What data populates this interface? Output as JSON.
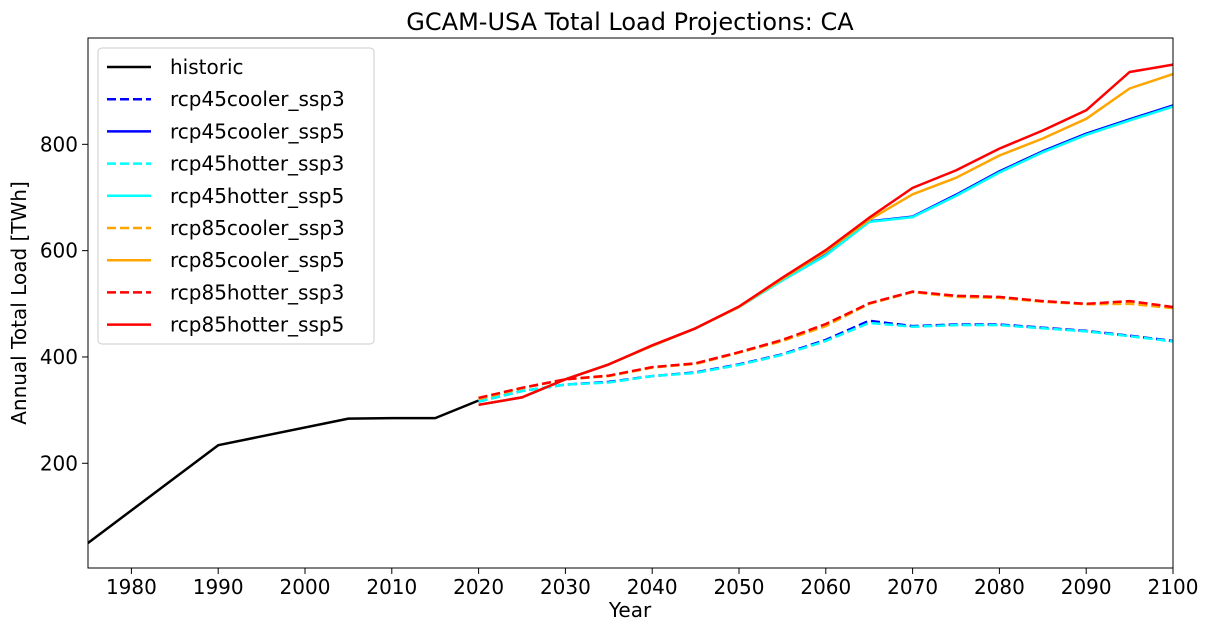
{
  "chart_data": {
    "type": "line",
    "title": "GCAM-USA Total Load Projections: CA",
    "xlabel": "Year",
    "ylabel": "Annual Total Load [TWh]",
    "xlim": [
      1975,
      2100
    ],
    "ylim": [
      3,
      1000
    ],
    "xticks": [
      1980,
      1990,
      2000,
      2010,
      2020,
      2030,
      2040,
      2050,
      2060,
      2070,
      2080,
      2090,
      2100
    ],
    "yticks": [
      200,
      400,
      600,
      800
    ],
    "grid": false,
    "legend_position": "top-left",
    "series": [
      {
        "name": "historic",
        "color": "#000000",
        "dash": "solid",
        "x": [
          1975,
          1990,
          2005,
          2010,
          2015,
          2020
        ],
        "y": [
          50,
          234,
          284,
          285,
          285,
          318
        ]
      },
      {
        "name": "rcp45cooler_ssp3",
        "color": "#0000ff",
        "dash": "dashed",
        "x": [
          2020,
          2025,
          2030,
          2035,
          2040,
          2045,
          2050,
          2055,
          2060,
          2065,
          2070,
          2075,
          2080,
          2085,
          2090,
          2095,
          2100
        ],
        "y": [
          316,
          336,
          348,
          353,
          364,
          371,
          386,
          405,
          432,
          468,
          458,
          461,
          461,
          455,
          449,
          440,
          430
        ]
      },
      {
        "name": "rcp45cooler_ssp5",
        "color": "#0000ff",
        "dash": "solid",
        "x": [
          2020,
          2025,
          2030,
          2035,
          2040,
          2045,
          2050,
          2055,
          2060,
          2065,
          2070,
          2075,
          2080,
          2085,
          2090,
          2095,
          2100
        ],
        "y": [
          310,
          324,
          358,
          386,
          421,
          454,
          494,
          545,
          592,
          655,
          664,
          705,
          749,
          787,
          820,
          847,
          873
        ]
      },
      {
        "name": "rcp45hotter_ssp3",
        "color": "#00ffff",
        "dash": "dashed",
        "x": [
          2020,
          2025,
          2030,
          2035,
          2040,
          2045,
          2050,
          2055,
          2060,
          2065,
          2070,
          2075,
          2080,
          2085,
          2090,
          2095,
          2100
        ],
        "y": [
          316,
          336,
          348,
          352,
          364,
          370,
          385,
          404,
          430,
          464,
          457,
          460,
          460,
          454,
          448,
          439,
          429
        ]
      },
      {
        "name": "rcp45hotter_ssp5",
        "color": "#00ffff",
        "dash": "solid",
        "x": [
          2020,
          2025,
          2030,
          2035,
          2040,
          2045,
          2050,
          2055,
          2060,
          2065,
          2070,
          2075,
          2080,
          2085,
          2090,
          2095,
          2100
        ],
        "y": [
          310,
          324,
          358,
          386,
          421,
          454,
          494,
          544,
          591,
          654,
          663,
          703,
          747,
          785,
          818,
          845,
          871
        ]
      },
      {
        "name": "rcp85cooler_ssp3",
        "color": "#ffa500",
        "dash": "dashed",
        "x": [
          2020,
          2025,
          2030,
          2035,
          2040,
          2045,
          2050,
          2055,
          2060,
          2065,
          2070,
          2075,
          2080,
          2085,
          2090,
          2095,
          2100
        ],
        "y": [
          321,
          341,
          358,
          364,
          380,
          387,
          408,
          430,
          458,
          500,
          522,
          513,
          511,
          504,
          499,
          500,
          492
        ]
      },
      {
        "name": "rcp85cooler_ssp5",
        "color": "#ffa500",
        "dash": "solid",
        "x": [
          2020,
          2025,
          2030,
          2035,
          2040,
          2045,
          2050,
          2055,
          2060,
          2065,
          2070,
          2075,
          2080,
          2085,
          2090,
          2095,
          2100
        ],
        "y": [
          310,
          324,
          358,
          386,
          421,
          454,
          494,
          547,
          598,
          658,
          706,
          737,
          779,
          811,
          848,
          905,
          932
        ]
      },
      {
        "name": "rcp85hotter_ssp3",
        "color": "#ff0000",
        "dash": "dashed",
        "x": [
          2020,
          2025,
          2030,
          2035,
          2040,
          2045,
          2050,
          2055,
          2060,
          2065,
          2070,
          2075,
          2080,
          2085,
          2090,
          2095,
          2100
        ],
        "y": [
          323,
          342,
          358,
          365,
          381,
          388,
          409,
          432,
          462,
          501,
          523,
          515,
          513,
          505,
          500,
          505,
          494
        ]
      },
      {
        "name": "rcp85hotter_ssp5",
        "color": "#ff0000",
        "dash": "solid",
        "x": [
          2020,
          2025,
          2030,
          2035,
          2040,
          2045,
          2050,
          2055,
          2060,
          2065,
          2070,
          2075,
          2080,
          2085,
          2090,
          2095,
          2100
        ],
        "y": [
          310,
          324,
          358,
          386,
          422,
          454,
          495,
          549,
          601,
          662,
          718,
          751,
          792,
          826,
          864,
          936,
          950
        ]
      }
    ]
  }
}
